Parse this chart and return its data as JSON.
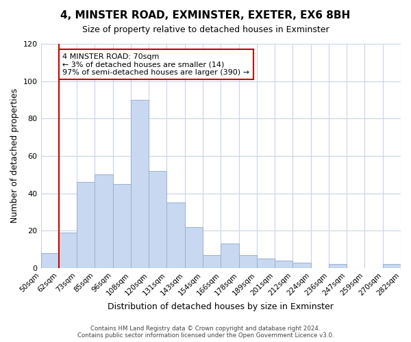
{
  "title": "4, MINSTER ROAD, EXMINSTER, EXETER, EX6 8BH",
  "subtitle": "Size of property relative to detached houses in Exminster",
  "xlabel": "Distribution of detached houses by size in Exminster",
  "ylabel": "Number of detached properties",
  "bar_color": "#c8d8f0",
  "bar_edge_color": "#9ab0d0",
  "bin_labels": [
    "50sqm",
    "62sqm",
    "73sqm",
    "85sqm",
    "96sqm",
    "108sqm",
    "120sqm",
    "131sqm",
    "143sqm",
    "154sqm",
    "166sqm",
    "178sqm",
    "189sqm",
    "201sqm",
    "212sqm",
    "224sqm",
    "236sqm",
    "247sqm",
    "259sqm",
    "270sqm",
    "282sqm"
  ],
  "bar_heights": [
    8,
    19,
    46,
    50,
    45,
    90,
    52,
    35,
    22,
    7,
    13,
    7,
    5,
    4,
    3,
    0,
    2,
    0,
    0,
    2
  ],
  "ylim": [
    0,
    120
  ],
  "yticks": [
    0,
    20,
    40,
    60,
    80,
    100,
    120
  ],
  "vline_color": "#cc0000",
  "annotation_title": "4 MINSTER ROAD: 70sqm",
  "annotation_line1": "← 3% of detached houses are smaller (14)",
  "annotation_line2": "97% of semi-detached houses are larger (390) →",
  "annotation_box_color": "#ffffff",
  "annotation_box_edge": "#cc0000",
  "footer1": "Contains HM Land Registry data © Crown copyright and database right 2024.",
  "footer2": "Contains public sector information licensed under the Open Government Licence v3.0.",
  "background_color": "#ffffff",
  "grid_color": "#c8d4e8"
}
